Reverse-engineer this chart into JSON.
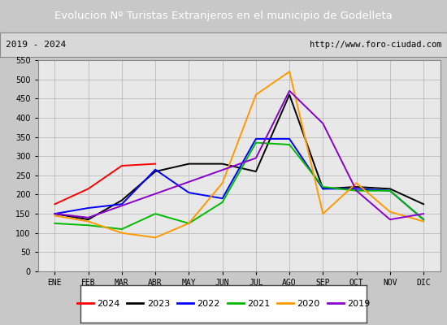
{
  "title": "Evolucion Nº Turistas Extranjeros en el municipio de Godelleta",
  "subtitle_left": "2019 - 2024",
  "subtitle_right": "http://www.foro-ciudad.com",
  "title_bg_color": "#4f86c6",
  "title_text_color": "#ffffff",
  "subtitle_bg_color": "#d8d8d8",
  "plot_bg_color": "#e8e8e8",
  "months": [
    "ENE",
    "FEB",
    "MAR",
    "ABR",
    "MAY",
    "JUN",
    "JUL",
    "AGO",
    "SEP",
    "OCT",
    "NOV",
    "DIC"
  ],
  "ylim": [
    0,
    550
  ],
  "yticks": [
    0,
    50,
    100,
    150,
    200,
    250,
    300,
    350,
    400,
    450,
    500,
    550
  ],
  "series": {
    "2024": {
      "color": "#ff0000",
      "values": [
        175,
        215,
        275,
        280,
        null,
        null,
        null,
        null,
        null,
        null,
        null,
        null
      ]
    },
    "2023": {
      "color": "#000000",
      "values": [
        150,
        135,
        185,
        260,
        280,
        280,
        260,
        460,
        215,
        220,
        215,
        175
      ]
    },
    "2022": {
      "color": "#0000ff",
      "values": [
        150,
        165,
        175,
        265,
        205,
        190,
        345,
        345,
        215,
        215,
        210,
        135
      ]
    },
    "2021": {
      "color": "#00bb00",
      "values": [
        125,
        120,
        110,
        150,
        125,
        180,
        335,
        330,
        220,
        210,
        210,
        135
      ]
    },
    "2020": {
      "color": "#ff9900",
      "values": [
        145,
        130,
        100,
        88,
        125,
        230,
        460,
        520,
        150,
        230,
        155,
        130
      ]
    },
    "2019": {
      "color": "#8800cc",
      "values": [
        150,
        140,
        null,
        null,
        null,
        null,
        295,
        470,
        385,
        210,
        135,
        150
      ]
    }
  },
  "legend_order": [
    "2024",
    "2023",
    "2022",
    "2021",
    "2020",
    "2019"
  ],
  "grid_color": "#bbbbbb",
  "border_color": "#888888",
  "outer_bg": "#c8c8c8"
}
